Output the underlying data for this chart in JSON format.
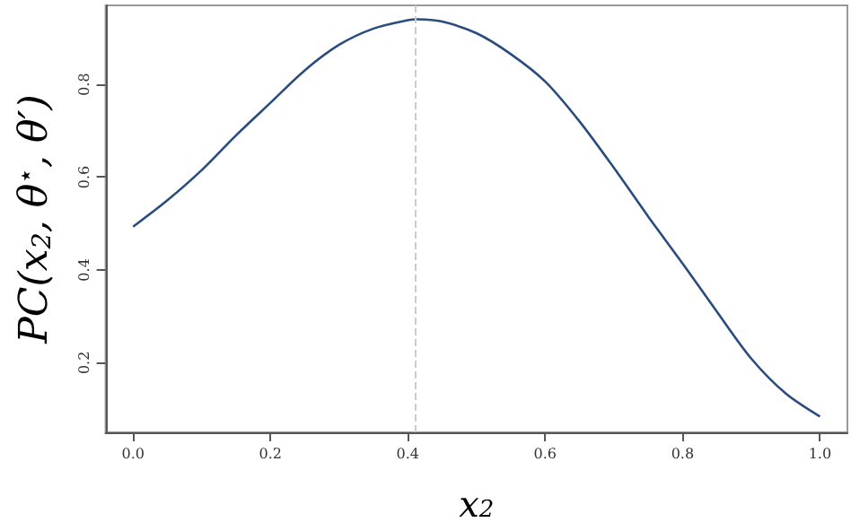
{
  "chart_data": {
    "type": "line",
    "xlabel": "x$_{2}$",
    "ylabel": "PC(x$_{2}$, θ$^{⋆}$, θ′)",
    "x": [
      0,
      0.05,
      0.1,
      0.15,
      0.2,
      0.25,
      0.3,
      0.35,
      0.4,
      0.414,
      0.45,
      0.5,
      0.55,
      0.6,
      0.65,
      0.7,
      0.75,
      0.8,
      0.85,
      0.9,
      0.95,
      1.0
    ],
    "series": [
      {
        "color": "#2b4c7e",
        "values": [
          0.493,
          0.55,
          0.615,
          0.69,
          0.76,
          0.83,
          0.885,
          0.92,
          0.938,
          0.94,
          0.935,
          0.91,
          0.865,
          0.806,
          0.72,
          0.62,
          0.515,
          0.414,
          0.31,
          0.209,
          0.134,
          0.084
        ]
      }
    ],
    "xlim": [
      -0.04,
      1.04
    ],
    "ylim": [
      0.05,
      0.97
    ],
    "xticks": [
      {
        "value": 0,
        "label": "0.0"
      },
      0.2,
      0.4,
      0.6,
      0.8,
      {
        "value": 1,
        "label": "1.0"
      }
    ],
    "yticks": [
      0.2,
      0.4,
      0.6,
      0.8
    ],
    "ref_lines": [
      {
        "axis": "x",
        "value": 0.414,
        "color": "#cccccc",
        "line_style": "dashed"
      }
    ],
    "grid": false,
    "marker": "none",
    "line_style": "solid"
  }
}
